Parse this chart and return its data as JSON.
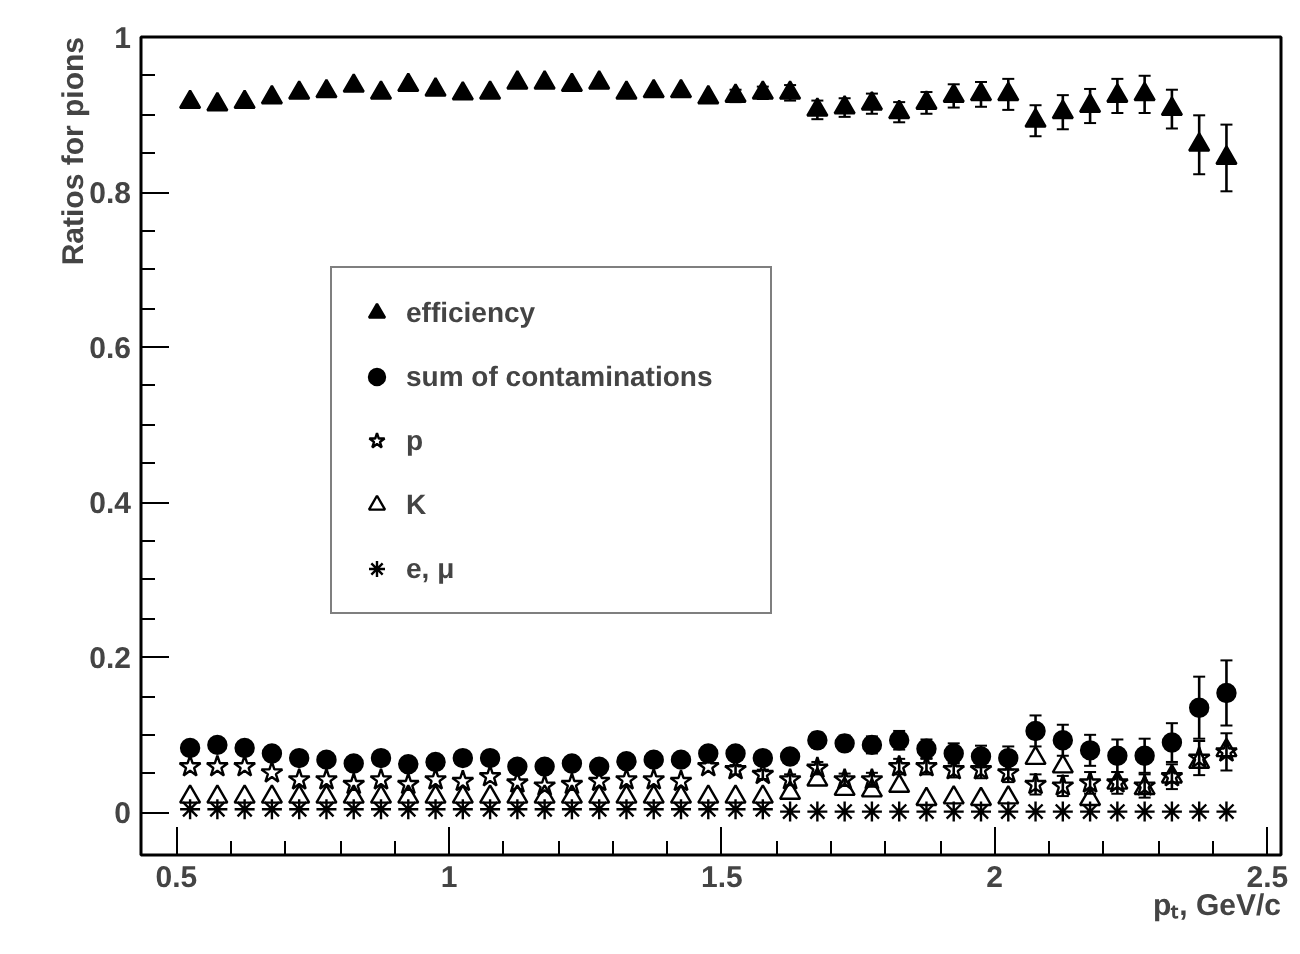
{
  "chart_data": {
    "type": "scatter",
    "xlabel": "pₜ, GeV/c",
    "ylabel": "Ratios for pions",
    "x": [
      0.525,
      0.575,
      0.625,
      0.675,
      0.725,
      0.775,
      0.825,
      0.875,
      0.925,
      0.975,
      1.025,
      1.075,
      1.125,
      1.175,
      1.225,
      1.275,
      1.325,
      1.375,
      1.425,
      1.475,
      1.525,
      1.575,
      1.625,
      1.675,
      1.725,
      1.775,
      1.825,
      1.875,
      1.925,
      1.975,
      2.025,
      2.075,
      2.125,
      2.175,
      2.225,
      2.275,
      2.325,
      2.375,
      2.425
    ],
    "series": [
      {
        "name": "efficiency",
        "color": "#000000",
        "marker": "triangle",
        "values": [
          0.916,
          0.913,
          0.916,
          0.922,
          0.928,
          0.93,
          0.937,
          0.928,
          0.938,
          0.932,
          0.927,
          0.928,
          0.941,
          0.941,
          0.938,
          0.941,
          0.928,
          0.93,
          0.93,
          0.922,
          0.924,
          0.928,
          0.928,
          0.906,
          0.909,
          0.914,
          0.903,
          0.915,
          0.924,
          0.926,
          0.926,
          0.892,
          0.903,
          0.911,
          0.924,
          0.926,
          0.907,
          0.861,
          0.844
        ],
        "errors": [
          null,
          null,
          null,
          null,
          null,
          null,
          null,
          null,
          null,
          null,
          null,
          null,
          null,
          null,
          null,
          null,
          null,
          null,
          null,
          null,
          0.008,
          0.008,
          0.01,
          0.012,
          0.012,
          0.013,
          0.013,
          0.014,
          0.015,
          0.016,
          0.02,
          0.02,
          0.022,
          0.022,
          0.022,
          0.024,
          0.025,
          0.038,
          0.043
        ]
      },
      {
        "name": "sum of contaminations",
        "color": "#000000",
        "marker": "circle",
        "values": [
          0.083,
          0.087,
          0.083,
          0.076,
          0.07,
          0.068,
          0.063,
          0.07,
          0.062,
          0.065,
          0.07,
          0.07,
          0.059,
          0.059,
          0.063,
          0.059,
          0.066,
          0.068,
          0.068,
          0.076,
          0.076,
          0.07,
          0.072,
          0.093,
          0.089,
          0.087,
          0.093,
          0.082,
          0.076,
          0.072,
          0.07,
          0.105,
          0.093,
          0.08,
          0.073,
          0.073,
          0.09,
          0.135,
          0.154
        ],
        "errors": [
          null,
          null,
          null,
          null,
          null,
          null,
          null,
          null,
          null,
          null,
          null,
          null,
          null,
          null,
          null,
          null,
          null,
          null,
          null,
          null,
          0.008,
          0.008,
          0.009,
          0.01,
          0.01,
          0.011,
          0.012,
          0.012,
          0.013,
          0.014,
          0.015,
          0.02,
          0.02,
          0.02,
          0.021,
          0.022,
          0.025,
          0.04,
          0.042
        ]
      },
      {
        "name": "p",
        "color": "#000000",
        "marker": "star",
        "values": [
          0.059,
          0.059,
          0.059,
          0.051,
          0.042,
          0.042,
          0.036,
          0.042,
          0.036,
          0.042,
          0.04,
          0.046,
          0.038,
          0.034,
          0.036,
          0.04,
          0.042,
          0.042,
          0.04,
          0.059,
          0.055,
          0.049,
          0.042,
          0.057,
          0.042,
          0.042,
          0.059,
          0.059,
          0.055,
          0.055,
          0.051,
          0.036,
          0.034,
          0.038,
          0.038,
          0.034,
          0.046,
          0.07,
          0.078
        ],
        "errors": [
          null,
          null,
          null,
          null,
          null,
          null,
          null,
          null,
          null,
          null,
          null,
          null,
          null,
          null,
          null,
          null,
          null,
          null,
          null,
          null,
          0.006,
          0.006,
          0.007,
          0.008,
          0.008,
          0.009,
          0.01,
          0.01,
          0.01,
          0.011,
          0.012,
          0.013,
          0.013,
          0.014,
          0.014,
          0.015,
          0.016,
          0.022,
          0.024
        ]
      },
      {
        "name": "K",
        "color": "#000000",
        "marker": "triangle_open",
        "values": [
          0.02,
          0.02,
          0.02,
          0.02,
          0.02,
          0.02,
          0.02,
          0.02,
          0.02,
          0.02,
          0.02,
          0.02,
          0.02,
          0.02,
          0.02,
          0.02,
          0.02,
          0.02,
          0.02,
          0.02,
          0.02,
          0.02,
          0.025,
          0.042,
          0.03,
          0.028,
          0.034,
          0.017,
          0.019,
          0.017,
          0.019,
          0.07,
          0.059,
          0.017,
          0.038,
          0.031,
          0.046,
          0.065,
          0.08
        ]
      },
      {
        "name": "e, μ",
        "color": "#000000",
        "marker": "cross",
        "values": [
          0.004,
          0.004,
          0.004,
          0.004,
          0.004,
          0.004,
          0.004,
          0.004,
          0.004,
          0.004,
          0.004,
          0.004,
          0.004,
          0.004,
          0.004,
          0.004,
          0.004,
          0.004,
          0.004,
          0.004,
          0.004,
          0.004,
          0.001,
          0.001,
          0.001,
          0.001,
          0.001,
          0.001,
          0.001,
          0.001,
          0.001,
          0.001,
          0.001,
          0.001,
          0.001,
          0.001,
          0.001,
          0.001,
          0.001
        ]
      }
    ],
    "xlim": [
      0.435,
      2.525
    ],
    "ylim": [
      -0.055,
      1.0
    ],
    "xticks": [
      0.5,
      1,
      1.5,
      2,
      2.5
    ],
    "yticks": [
      0,
      0.2,
      0.4,
      0.6,
      0.8,
      1
    ],
    "grid": false,
    "legend": "left"
  }
}
